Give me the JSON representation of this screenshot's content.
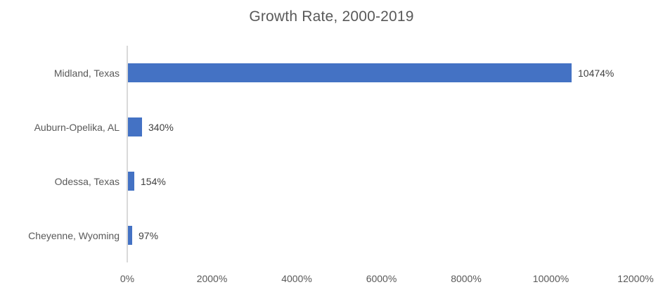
{
  "title": "Growth Rate, 2000-2019",
  "colors": {
    "bar": "#4472C4",
    "title_text": "#595959",
    "axis_text": "#595959",
    "data_label_text": "#404040",
    "axis_line": "#D9D9D9",
    "background": "#FFFFFF"
  },
  "chart_data": {
    "type": "bar",
    "orientation": "horizontal",
    "title": "Growth Rate, 2000-2019",
    "categories": [
      "Midland, Texas",
      "Auburn-Opelika, AL",
      "Odessa, Texas",
      "Cheyenne, Wyoming"
    ],
    "values": [
      10474,
      340,
      154,
      97
    ],
    "data_labels": [
      "10474%",
      "340%",
      "154%",
      "97%"
    ],
    "xlabel": "",
    "ylabel": "",
    "xlim": [
      0,
      12000
    ],
    "x_tick_interval": 2000,
    "x_tick_values": [
      0,
      2000,
      4000,
      6000,
      8000,
      10000,
      12000
    ],
    "x_tick_labels": [
      "0%",
      "2000%",
      "4000%",
      "6000%",
      "8000%",
      "10000%",
      "12000%"
    ],
    "grid": false,
    "legend": false
  }
}
